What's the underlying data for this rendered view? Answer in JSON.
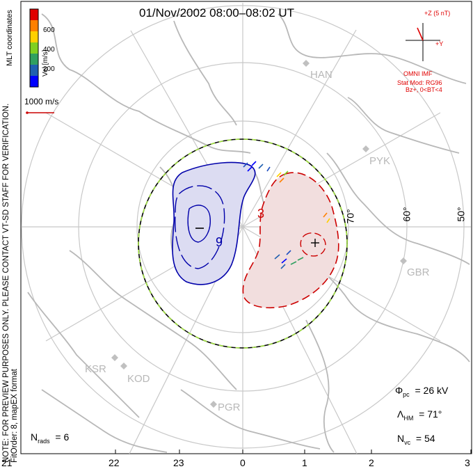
{
  "title": "01/Nov/2002 08:00–08:02 UT",
  "side_note": {
    "line1": "NOTE: FOR PREVIEW PURPOSES ONLY. PLEASE CONTACT VT-SD STAFF FOR VERIFICATION.",
    "line2": "FitOrder: 8,  mapEX format"
  },
  "coordinates_label": "MLT coordinates",
  "colorbar": {
    "label": "Vel [m/s]",
    "ticks": [
      "600",
      "400",
      "200"
    ],
    "colors": [
      "#e00000",
      "#ff8000",
      "#ffd000",
      "#80d020",
      "#30a060",
      "#2060b0",
      "#0000ff"
    ]
  },
  "reference_vector": "1000 m/s",
  "imf": {
    "z_label": "+Z (5 nT)",
    "y_label": "+Y",
    "source": "OMNI IMF",
    "stat_mod": "Stat Mod: RG96",
    "condition": "Bz+, 0<BT<4"
  },
  "stations": [
    "HAN",
    "PYK",
    "GBR",
    "KSR",
    "KOD",
    "PGR"
  ],
  "latitude_labels": [
    "70°",
    "60°",
    "50°"
  ],
  "potential_labels": {
    "negative": "−",
    "positive": "+",
    "contour_neg": "9",
    "contour_pos": "3"
  },
  "stats": {
    "phi_pc": {
      "symbol": "Φ",
      "sub": "pc",
      "value": "= 26 kV"
    },
    "lambda_hm": {
      "symbol": "Λ",
      "sub": "HM",
      "value": "= 71°"
    },
    "n_vc": {
      "symbol": "N",
      "sub": "vc",
      "value": "= 54"
    },
    "n_rads": {
      "symbol": "N",
      "sub": "rads",
      "value": "= 6"
    }
  },
  "mlt_ticks": [
    "21",
    "22",
    "23",
    "0",
    "1",
    "2",
    "3"
  ]
}
